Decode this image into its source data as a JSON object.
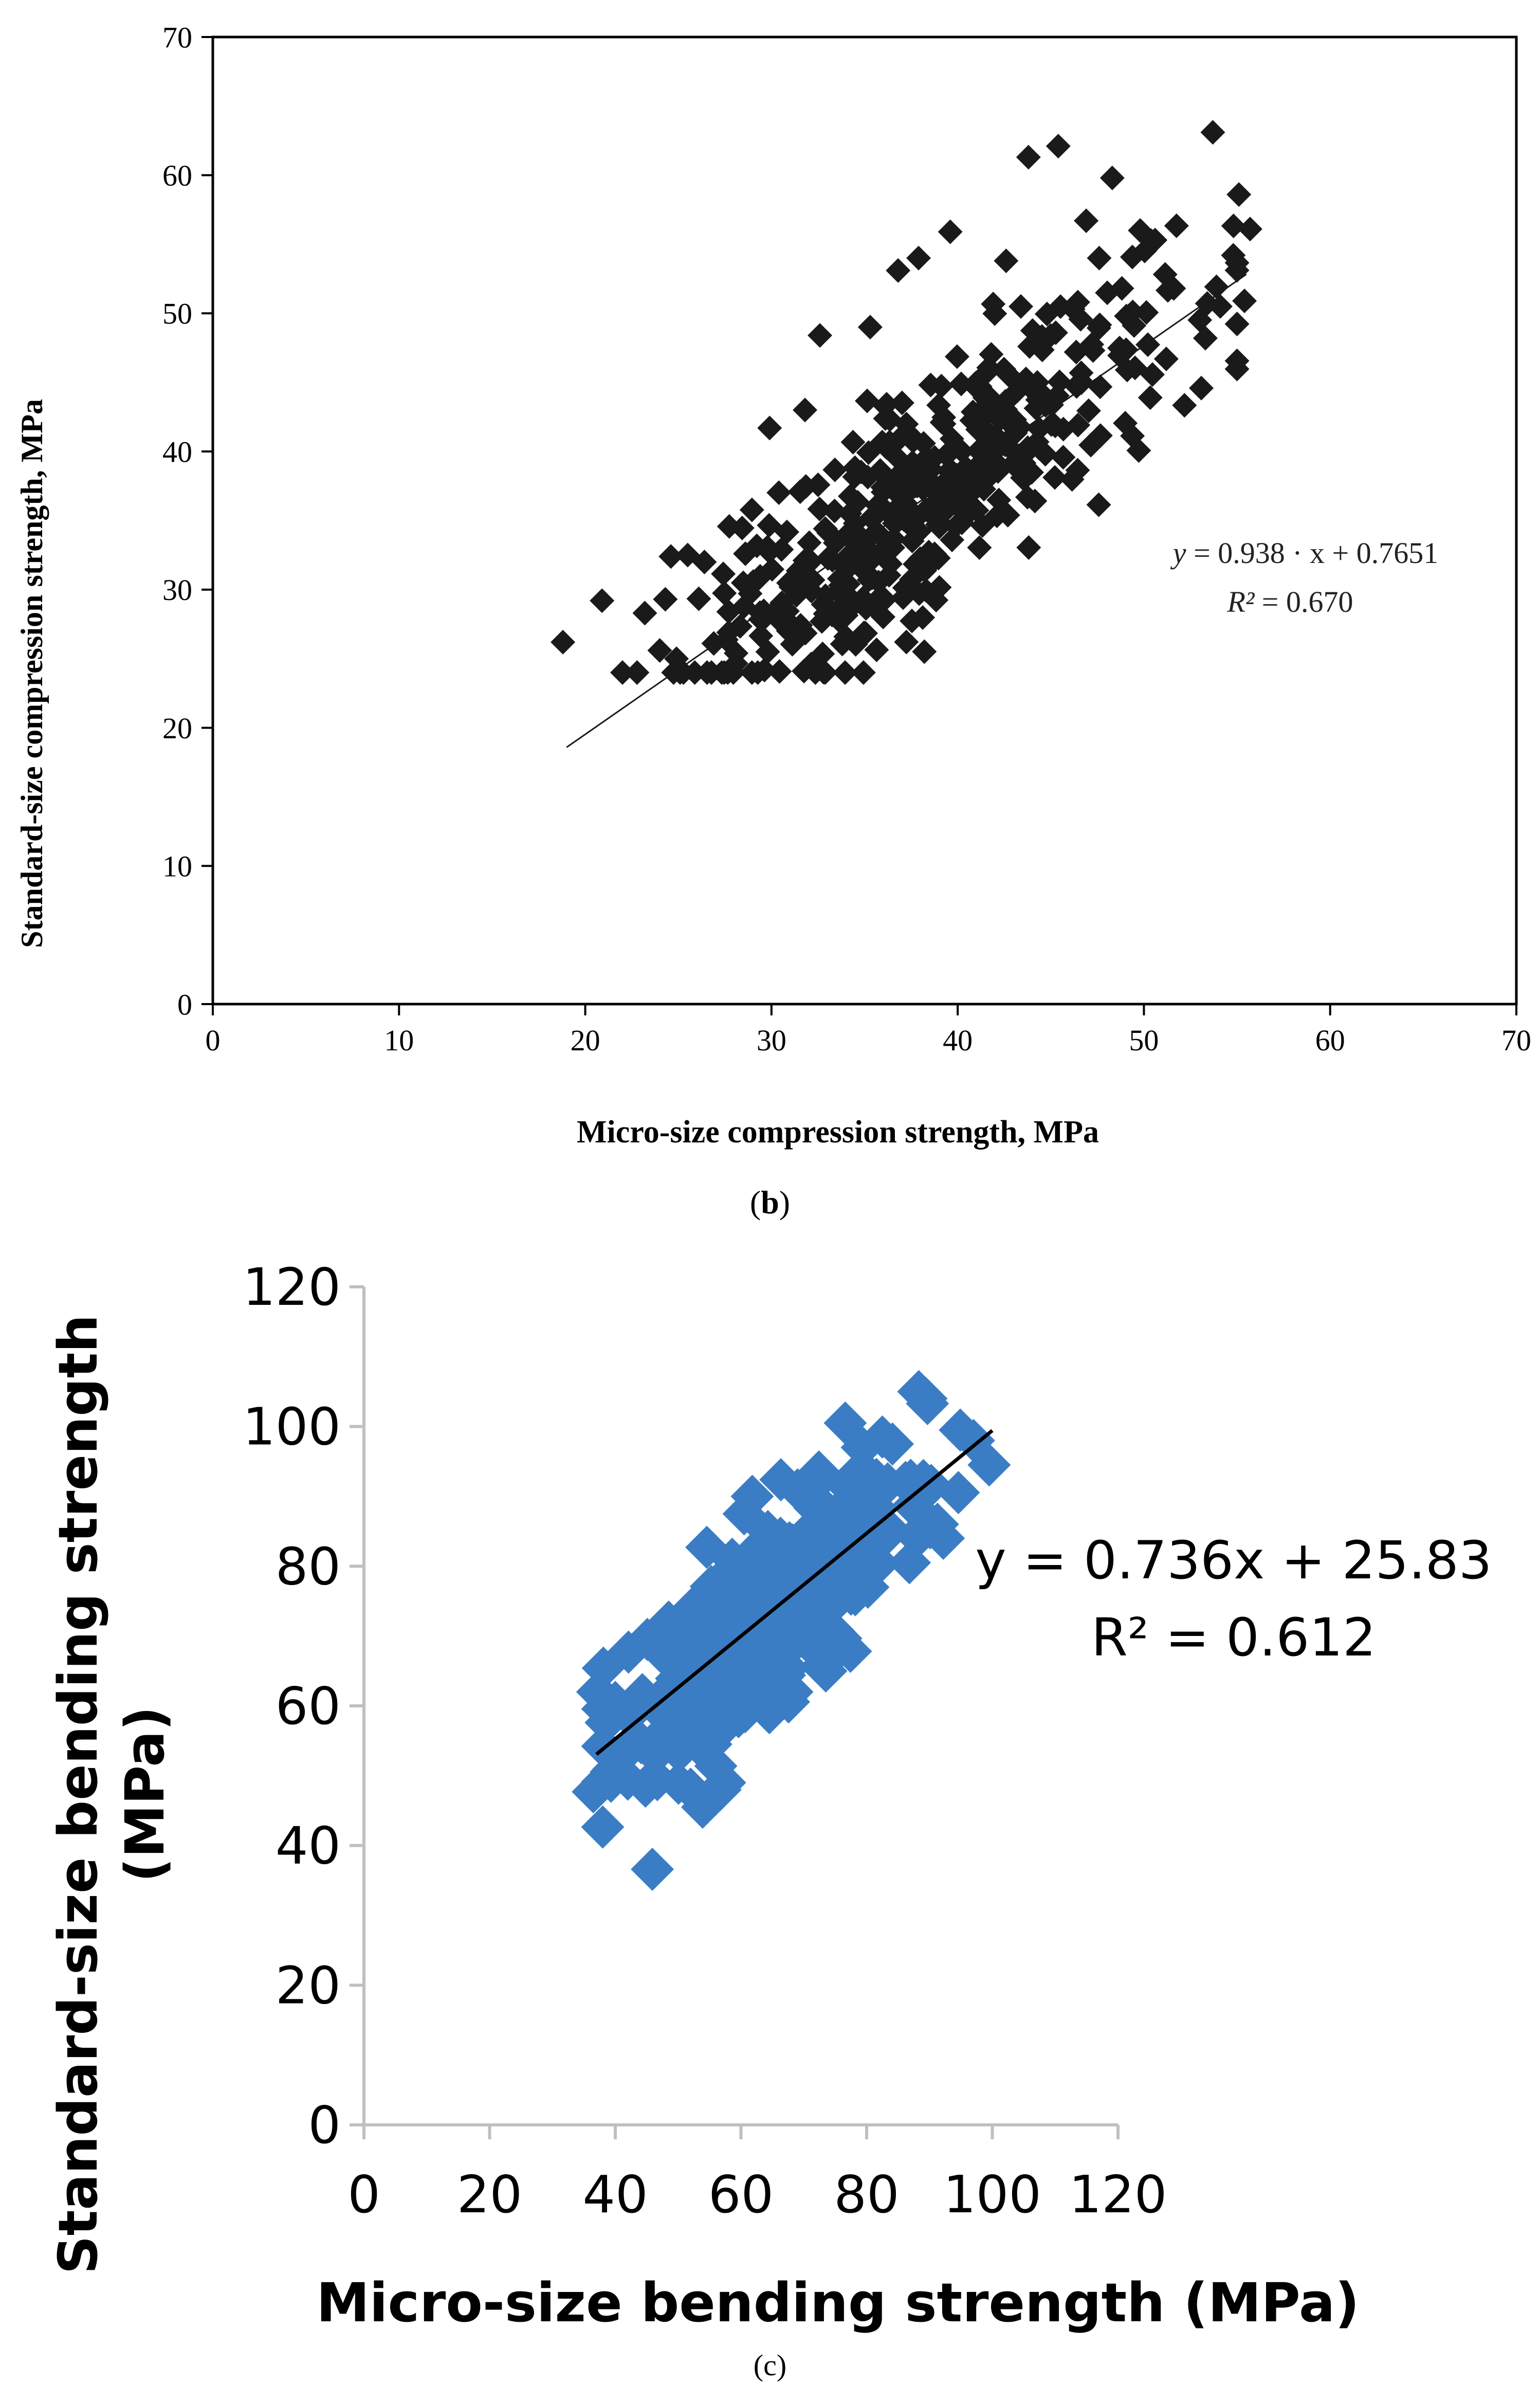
{
  "panel_labels": [
    "b",
    "c"
  ],
  "chart_data": [
    {
      "type": "scatter",
      "panel": "b",
      "title": "",
      "xlabel": "Micro-size compression strength, MPa",
      "ylabel": "Standard-size compression strength, MPa",
      "xlim": [
        0,
        70
      ],
      "ylim": [
        0,
        70
      ],
      "xticks": [
        0,
        10,
        20,
        30,
        40,
        50,
        60,
        70
      ],
      "yticks": [
        0,
        10,
        20,
        30,
        40,
        50,
        60,
        70
      ],
      "grid": false,
      "marker": "diamond",
      "marker_color": "#1a1a1a",
      "equation": {
        "y_prefix": "y",
        "equation_body": " = 0.938 · x + 0.7651",
        "r2_prefix": "R²",
        "r2_body": " = 0.670"
      },
      "trendline": {
        "slope": 0.938,
        "intercept": 0.7651,
        "x_range": [
          19,
          55.5
        ]
      },
      "n_points": 420,
      "seed": 7,
      "points": [
        [
          18.8,
          26.2
        ],
        [
          20.9,
          29.2
        ],
        [
          23.2,
          28.3
        ],
        [
          24.0,
          25.6
        ],
        [
          24.3,
          29.3
        ],
        [
          24.6,
          32.4
        ],
        [
          24.9,
          25.0
        ],
        [
          25.5,
          32.5
        ],
        [
          26.4,
          32.0
        ],
        [
          27.7,
          26.9
        ],
        [
          28.1,
          25.4
        ],
        [
          28.6,
          32.6
        ],
        [
          29.8,
          25.5
        ],
        [
          30.4,
          27.8
        ],
        [
          29.9,
          41.7
        ],
        [
          31.8,
          43.0
        ],
        [
          32.6,
          48.4
        ],
        [
          33.7,
          30.3
        ],
        [
          34.2,
          28.6
        ],
        [
          35.3,
          49.0
        ],
        [
          36.1,
          43.3
        ],
        [
          36.8,
          53.1
        ],
        [
          37.9,
          54.0
        ],
        [
          38.7,
          32.1
        ],
        [
          39.6,
          55.9
        ],
        [
          39.9,
          34.6
        ],
        [
          41.8,
          43.8
        ],
        [
          42.6,
          53.8
        ],
        [
          43.3,
          39.7
        ],
        [
          43.8,
          61.3
        ],
        [
          45.4,
          62.1
        ],
        [
          46.2,
          50.3
        ],
        [
          46.9,
          56.7
        ],
        [
          47.6,
          54.0
        ],
        [
          48.3,
          59.8
        ],
        [
          49.1,
          45.9
        ],
        [
          49.4,
          50.1
        ],
        [
          49.8,
          56.0
        ],
        [
          50.6,
          55.3
        ],
        [
          51.2,
          46.7
        ],
        [
          51.6,
          51.8
        ],
        [
          53.3,
          48.2
        ],
        [
          53.7,
          63.1
        ],
        [
          54.1,
          50.5
        ],
        [
          54.8,
          54.2
        ],
        [
          55.1,
          58.6
        ],
        [
          55.4,
          50.9
        ],
        [
          55.7,
          56.1
        ]
      ]
    },
    {
      "type": "scatter",
      "panel": "c",
      "title": "",
      "xlabel": "Micro-size bending strength (MPa)",
      "ylabel_lines": [
        "Standard-size bending strength",
        "(MPa)"
      ],
      "xlim": [
        0,
        120
      ],
      "ylim": [
        0,
        120
      ],
      "xticks": [
        0,
        20,
        40,
        60,
        80,
        100,
        120
      ],
      "yticks": [
        0,
        20,
        40,
        60,
        80,
        100,
        120
      ],
      "grid": false,
      "marker": "diamond",
      "marker_color": "#3b7dc4",
      "equation": {
        "line1": "y = 0.736x + 25.83",
        "line2": "R² = 0.612"
      },
      "trendline": {
        "slope": 0.736,
        "intercept": 25.83,
        "x_range": [
          37,
          100
        ]
      },
      "n_points": 320,
      "seed": 11,
      "points": [
        [
          36.5,
          47.7
        ],
        [
          37.2,
          62.0
        ],
        [
          38.1,
          65.4
        ],
        [
          40.0,
          60.5
        ],
        [
          42.1,
          67.7
        ],
        [
          44.8,
          48.5
        ],
        [
          45.9,
          36.6
        ],
        [
          46.3,
          53.0
        ],
        [
          48.5,
          72.0
        ],
        [
          53.9,
          45.5
        ],
        [
          55.2,
          54.5
        ],
        [
          57.4,
          49.0
        ],
        [
          60.5,
          87.5
        ],
        [
          61.8,
          90.0
        ],
        [
          66.3,
          84.0
        ],
        [
          68.1,
          62.0
        ],
        [
          72.4,
          93.5
        ],
        [
          73.5,
          65.0
        ],
        [
          76.6,
          100.5
        ],
        [
          79.3,
          97.0
        ],
        [
          80.2,
          77.0
        ],
        [
          82.5,
          98.5
        ],
        [
          84.1,
          97.5
        ],
        [
          86.2,
          92.0
        ],
        [
          86.8,
          80.5
        ],
        [
          88.3,
          105.0
        ],
        [
          90.1,
          85.5
        ],
        [
          92.2,
          84.0
        ],
        [
          94.9,
          99.5
        ],
        [
          97.0,
          98.0
        ],
        [
          99.5,
          94.5
        ]
      ]
    }
  ]
}
